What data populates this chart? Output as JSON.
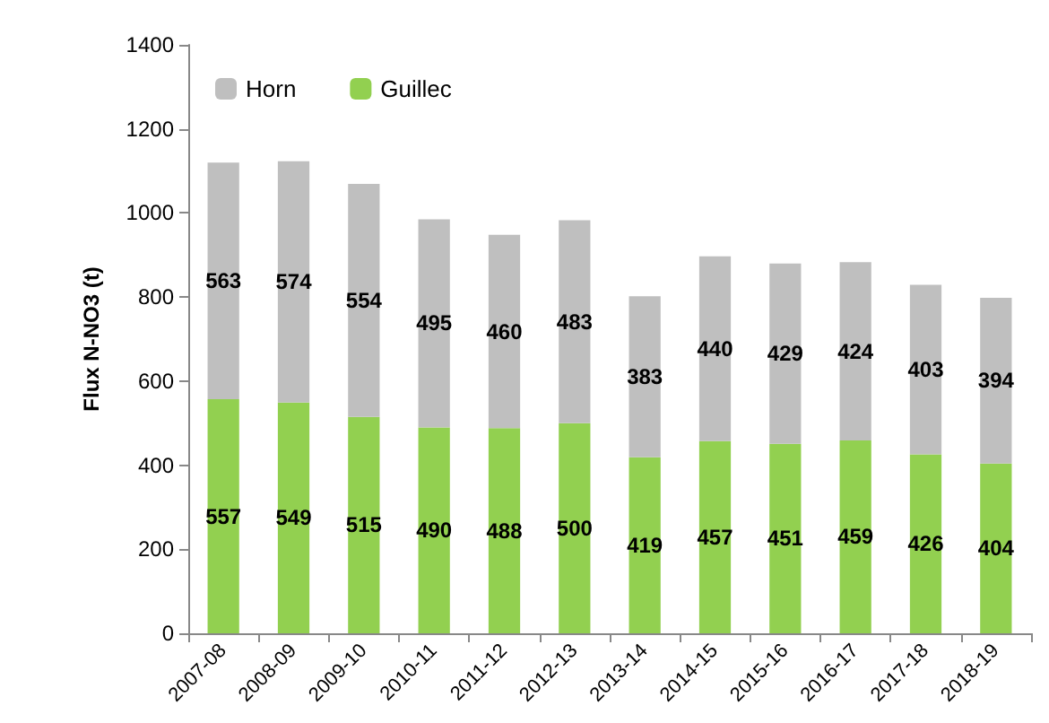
{
  "chart_data": {
    "type": "bar",
    "ylabel": "Flux N-NO3 (t)",
    "stacked": true,
    "data_labels": true,
    "legend": "top left",
    "grid": false,
    "categories": [
      "2007-08",
      "2008-09",
      "2009-10",
      "2010-11",
      "2011-12",
      "2012-13",
      "2013-14",
      "2014-15",
      "2015-16",
      "2016-17",
      "2017-18",
      "2018-19"
    ],
    "series": [
      {
        "name": "Guillec",
        "color": "#92d050",
        "values": [
          557,
          549,
          515,
          490,
          488,
          500,
          419,
          457,
          451,
          459,
          426,
          404
        ]
      },
      {
        "name": "Horn",
        "color": "#bfbfbf",
        "values": [
          563,
          574,
          554,
          495,
          460,
          483,
          383,
          440,
          429,
          424,
          403,
          394
        ]
      }
    ],
    "ylim": [
      0,
      1400
    ],
    "yticks": [
      0,
      200,
      400,
      600,
      800,
      1000,
      1200,
      1400
    ]
  }
}
